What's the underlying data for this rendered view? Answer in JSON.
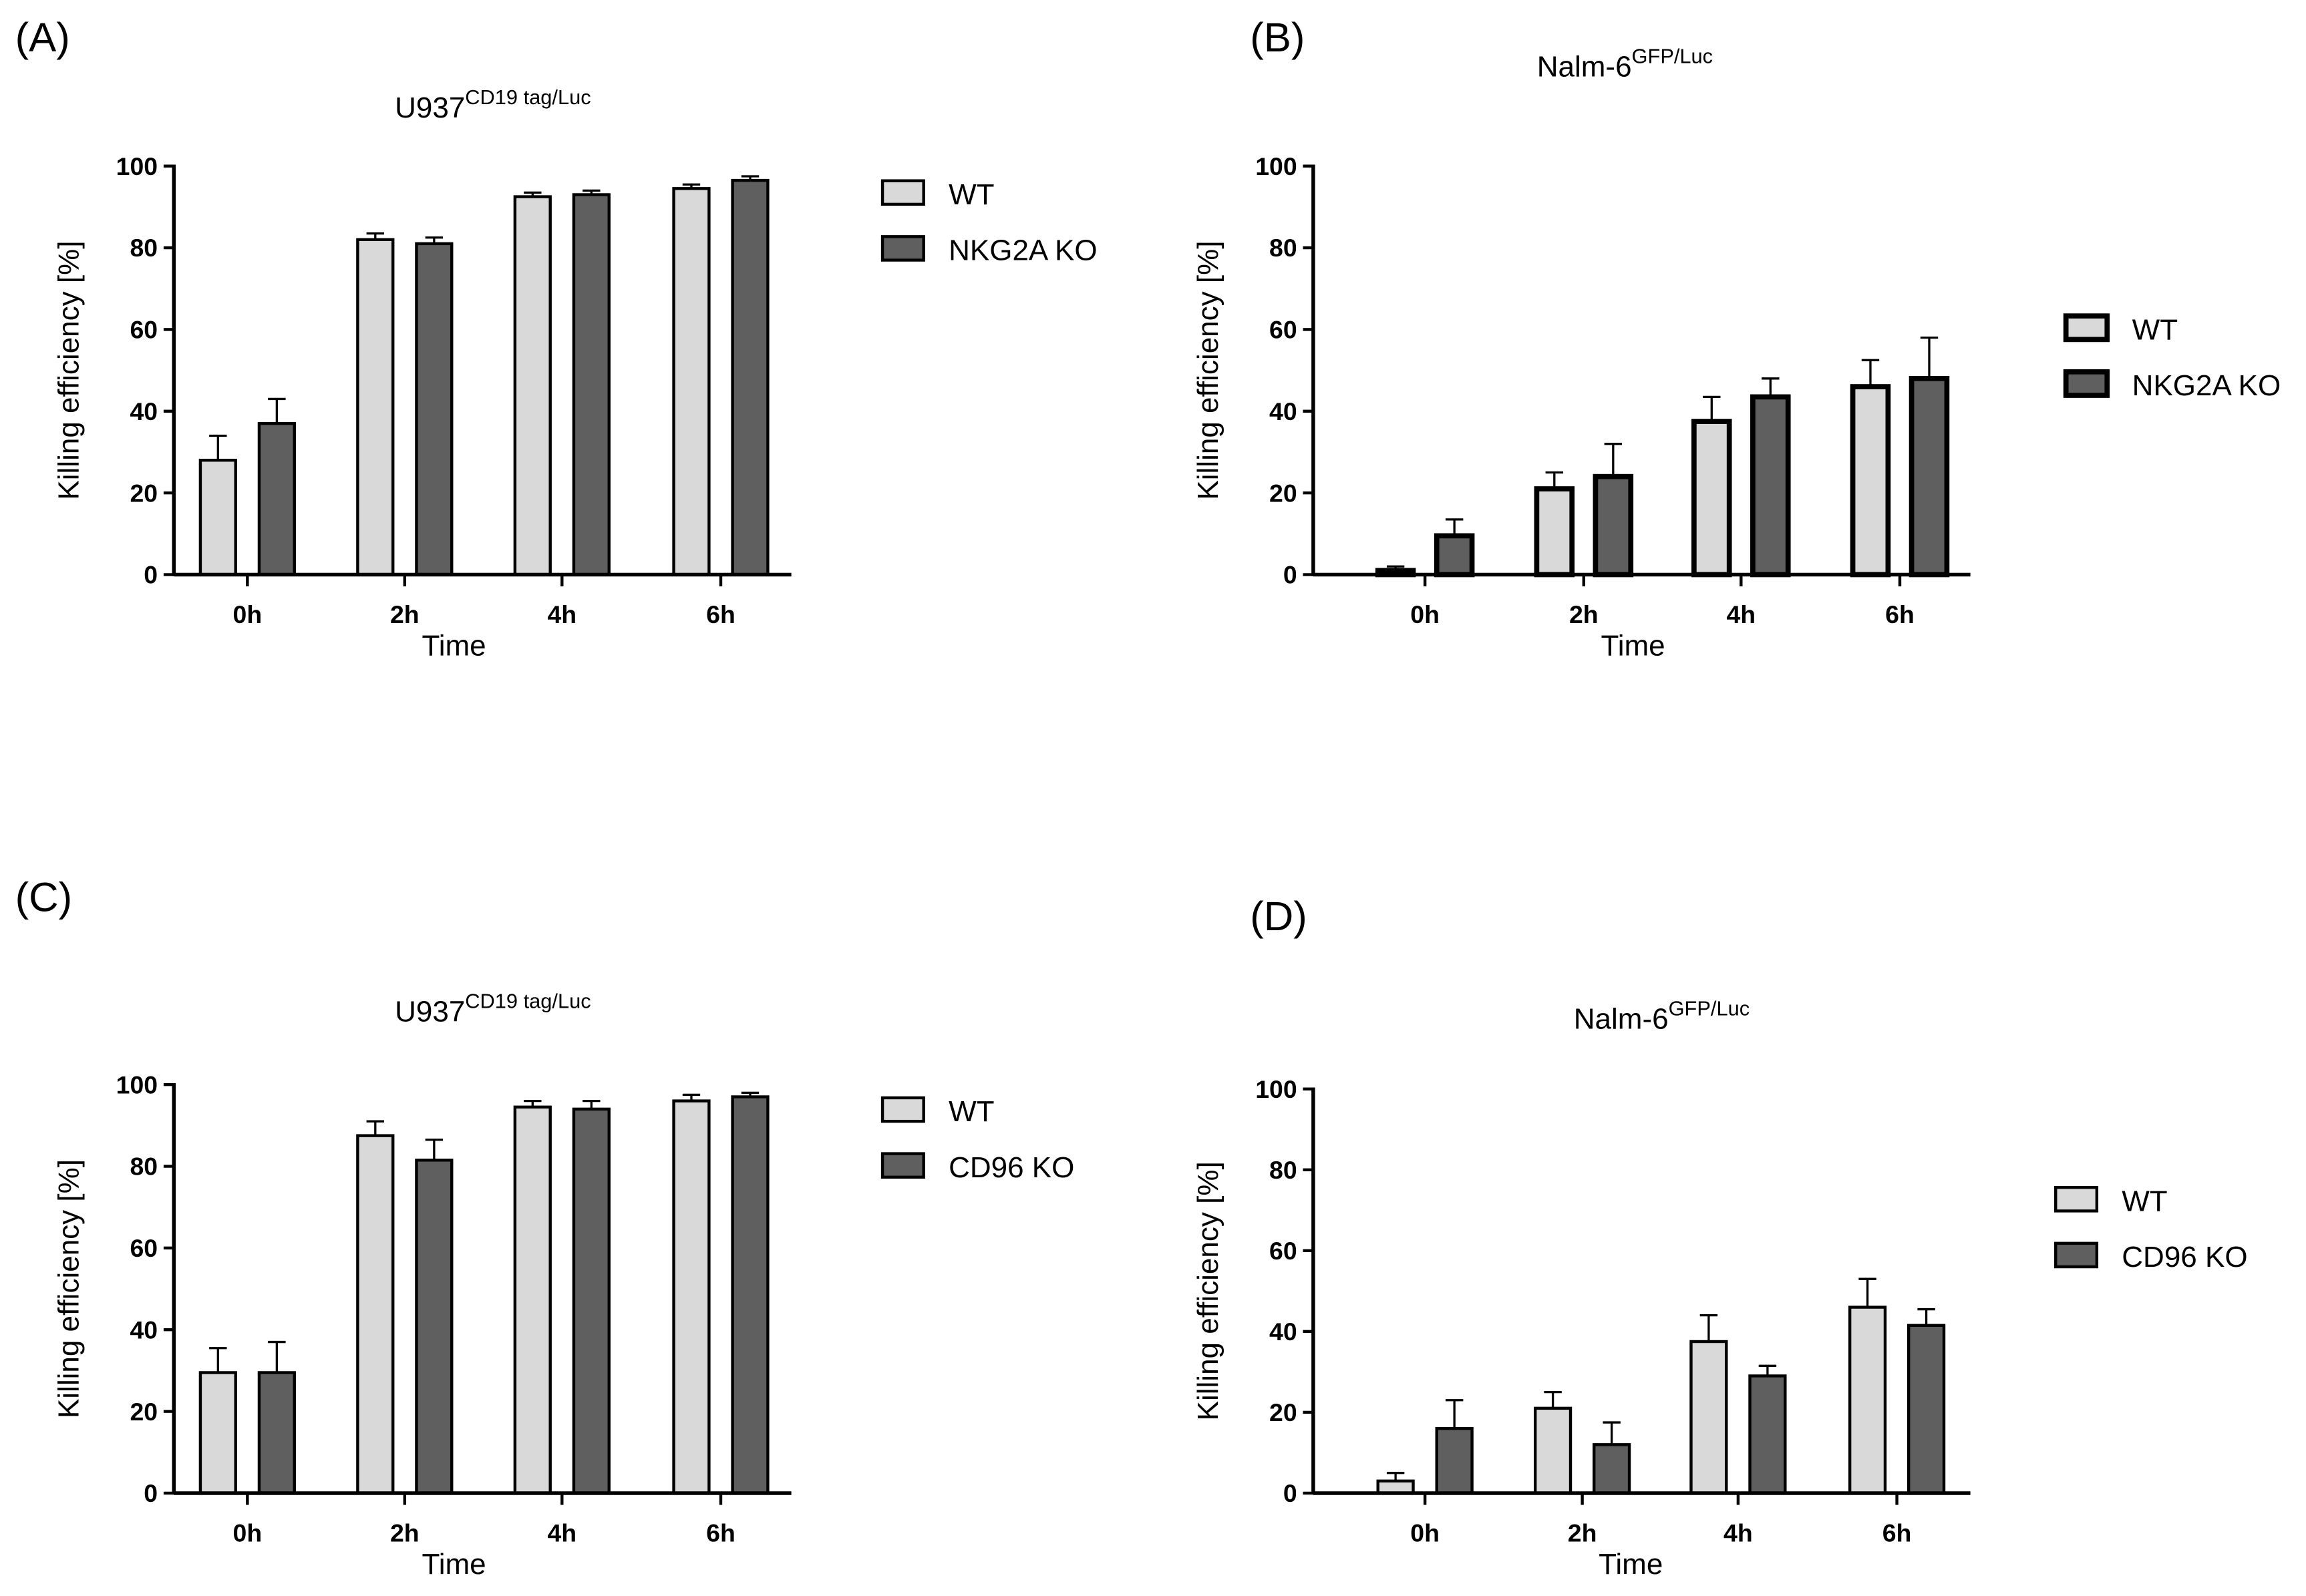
{
  "chart_data": [
    {
      "panel": "(A)",
      "type": "bar",
      "title": "U937",
      "title_sup": "CD19 tag/Luc",
      "xlabel": "Time",
      "ylabel": "Killing efficiency [%]",
      "ylim": [
        0,
        100
      ],
      "yticks": [
        0,
        20,
        40,
        60,
        80,
        100
      ],
      "categories": [
        "0h",
        "2h",
        "4h",
        "6h"
      ],
      "legend_position": "right",
      "series": [
        {
          "name": "WT",
          "color": "#d9d9d9",
          "values": [
            28,
            82,
            92.5,
            94.5
          ],
          "errors": [
            6,
            1.5,
            1,
            1
          ]
        },
        {
          "name": "NKG2A KO",
          "color": "#5f5f5f",
          "values": [
            37,
            81,
            93,
            96.5
          ],
          "errors": [
            6,
            1.5,
            1,
            1
          ]
        }
      ]
    },
    {
      "panel": "(B)",
      "type": "bar",
      "title": "Nalm-6",
      "title_sup": "GFP/Luc",
      "xlabel": "Time",
      "ylabel": "Killing efficiency [%]",
      "ylim": [
        0,
        100
      ],
      "yticks": [
        0,
        20,
        40,
        60,
        80,
        100
      ],
      "categories": [
        "0h",
        "2h",
        "4h",
        "6h"
      ],
      "legend_position": "right",
      "series": [
        {
          "name": "WT",
          "color": "#d9d9d9",
          "values": [
            1,
            21,
            37.5,
            46
          ],
          "errors": [
            1,
            4,
            6,
            6.5
          ]
        },
        {
          "name": "NKG2A KO",
          "color": "#5f5f5f",
          "values": [
            9.5,
            24,
            43.5,
            48
          ],
          "errors": [
            4,
            8,
            4.5,
            10
          ]
        }
      ]
    },
    {
      "panel": "(C)",
      "type": "bar",
      "title": "U937",
      "title_sup": "CD19 tag/Luc",
      "xlabel": "Time",
      "ylabel": "Killing efficiency [%]",
      "ylim": [
        0,
        100
      ],
      "yticks": [
        0,
        20,
        40,
        60,
        80,
        100
      ],
      "categories": [
        "0h",
        "2h",
        "4h",
        "6h"
      ],
      "legend_position": "right",
      "series": [
        {
          "name": "WT",
          "color": "#d9d9d9",
          "values": [
            29.5,
            87.5,
            94.5,
            96
          ],
          "errors": [
            6,
            3.5,
            1.5,
            1.5
          ]
        },
        {
          "name": "CD96 KO",
          "color": "#5f5f5f",
          "values": [
            29.5,
            81.5,
            94,
            97
          ],
          "errors": [
            7.5,
            5,
            2,
            1
          ]
        }
      ]
    },
    {
      "panel": "(D)",
      "type": "bar",
      "title": "Nalm-6",
      "title_sup": "GFP/Luc",
      "xlabel": "Time",
      "ylabel": "Killing efficiency [%]",
      "ylim": [
        0,
        100
      ],
      "yticks": [
        0,
        20,
        40,
        60,
        80,
        100
      ],
      "categories": [
        "0h",
        "2h",
        "4h",
        "6h"
      ],
      "legend_position": "right",
      "series": [
        {
          "name": "WT",
          "color": "#d9d9d9",
          "values": [
            3,
            21,
            37.5,
            46
          ],
          "errors": [
            2,
            4,
            6.5,
            7
          ]
        },
        {
          "name": "CD96 KO",
          "color": "#5f5f5f",
          "values": [
            16,
            12,
            29,
            41.5
          ],
          "errors": [
            7,
            5.5,
            2.5,
            4
          ]
        }
      ]
    }
  ]
}
